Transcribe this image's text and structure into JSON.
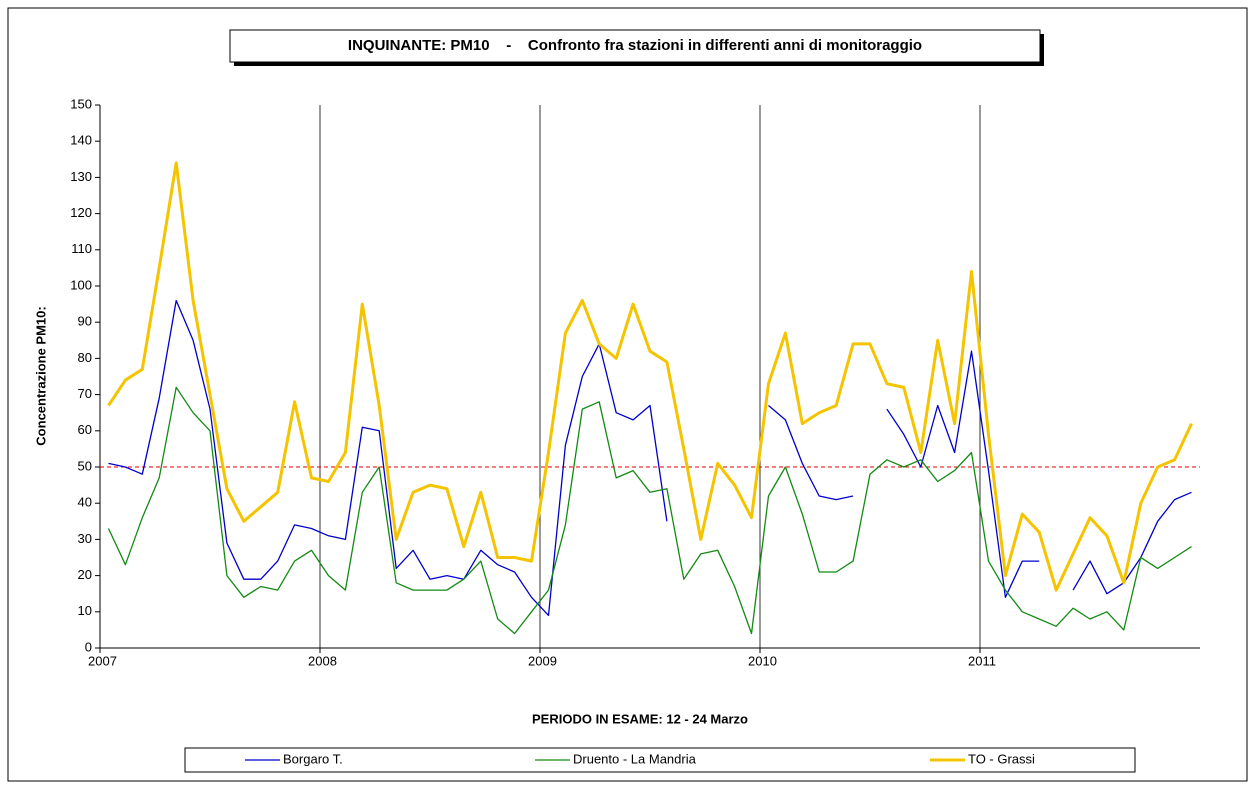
{
  "chart_data": {
    "type": "line",
    "title": "INQUINANTE: PM10    -    Confronto fra stazioni in differenti anni di monitoraggio",
    "x_label": "PERIODO IN ESAME: 12 - 24 Marzo",
    "y_label": "Concentrazione PM10:",
    "categories": [
      "2007",
      null,
      null,
      null,
      null,
      null,
      null,
      null,
      null,
      null,
      null,
      null,
      null,
      "2008",
      null,
      null,
      null,
      null,
      null,
      null,
      null,
      null,
      null,
      null,
      null,
      null,
      "2009",
      null,
      null,
      null,
      null,
      null,
      null,
      null,
      null,
      null,
      null,
      null,
      null,
      "2010",
      null,
      null,
      null,
      null,
      null,
      null,
      null,
      null,
      null,
      null,
      null,
      null,
      "2011",
      null,
      null,
      null,
      null,
      null,
      null,
      null,
      null,
      null,
      null,
      null,
      null
    ],
    "ylim": [
      0,
      150
    ],
    "yticks": [
      0,
      10,
      20,
      30,
      40,
      50,
      60,
      70,
      80,
      90,
      100,
      110,
      120,
      130,
      140,
      150
    ],
    "reference_line": {
      "value": 50,
      "color": "#e00000"
    },
    "series": [
      {
        "name": "Borgaro T.",
        "color": "#0000cc",
        "width": 1.3,
        "values": [
          51,
          50,
          48,
          69,
          96,
          85,
          66,
          29,
          19,
          19,
          24,
          34,
          33,
          31,
          30,
          61,
          60,
          22,
          27,
          19,
          20,
          19,
          27,
          23,
          21,
          14,
          9,
          56,
          75,
          84,
          65,
          63,
          67,
          35,
          null,
          null,
          null,
          null,
          null,
          67,
          63,
          51,
          42,
          41,
          42,
          null,
          66,
          59,
          50,
          67,
          54,
          82,
          49,
          14,
          24,
          24,
          null,
          16,
          24,
          15,
          18,
          25,
          35,
          41,
          43
        ]
      },
      {
        "name": "Druento - La Mandria",
        "color": "#138a13",
        "width": 1.3,
        "values": [
          33,
          23,
          36,
          47,
          72,
          65,
          60,
          20,
          14,
          17,
          16,
          24,
          27,
          20,
          16,
          43,
          50,
          18,
          16,
          16,
          16,
          19,
          24,
          8,
          4,
          10,
          16,
          34,
          66,
          68,
          47,
          49,
          43,
          44,
          19,
          26,
          27,
          17,
          4,
          42,
          50,
          37,
          21,
          21,
          24,
          48,
          52,
          50,
          52,
          46,
          49,
          54,
          24,
          16,
          10,
          8,
          6,
          11,
          8,
          10,
          5,
          25,
          22,
          25,
          28
        ]
      },
      {
        "name": "TO - Grassi",
        "color": "#f5c400",
        "width": 3,
        "values": [
          67,
          74,
          77,
          105,
          134,
          96,
          70,
          44,
          35,
          39,
          43,
          68,
          47,
          46,
          54,
          95,
          67,
          30,
          43,
          45,
          44,
          28,
          43,
          25,
          25,
          24,
          54,
          87,
          96,
          84,
          80,
          95,
          82,
          79,
          55,
          30,
          51,
          45,
          36,
          73,
          87,
          62,
          65,
          67,
          84,
          84,
          73,
          72,
          54,
          85,
          62,
          104,
          59,
          20,
          37,
          32,
          16,
          26,
          36,
          31,
          18,
          40,
          50,
          52,
          62
        ]
      }
    ]
  }
}
